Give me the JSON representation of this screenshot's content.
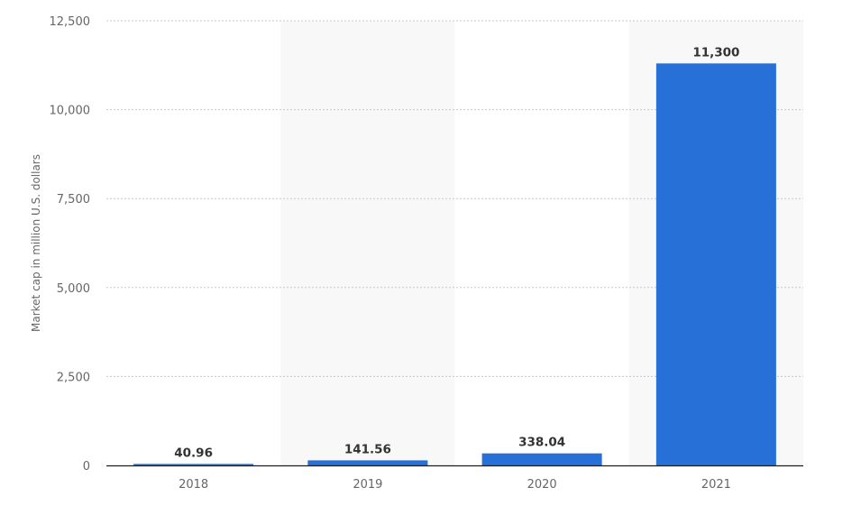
{
  "chart_data": {
    "type": "bar",
    "categories": [
      "2018",
      "2019",
      "2020",
      "2021"
    ],
    "values": [
      40.96,
      141.56,
      338.04,
      11300
    ],
    "value_labels": [
      "40.96",
      "141.56",
      "338.04",
      "11,300"
    ],
    "title": "",
    "xlabel": "",
    "ylabel": "Market cap in million U.S. dollars",
    "ylim": [
      0,
      12500
    ],
    "yticks": [
      0,
      2500,
      5000,
      7500,
      10000,
      12500
    ],
    "ytick_labels": [
      "0",
      "2,500",
      "5,000",
      "7,500",
      "10,000",
      "12,500"
    ],
    "grid": true,
    "legend": "none",
    "bar_color": "#2670d8",
    "band_color": "#f8f8f8",
    "grid_color": "#c8c8c8",
    "axis_color": "#1e1e1e"
  }
}
